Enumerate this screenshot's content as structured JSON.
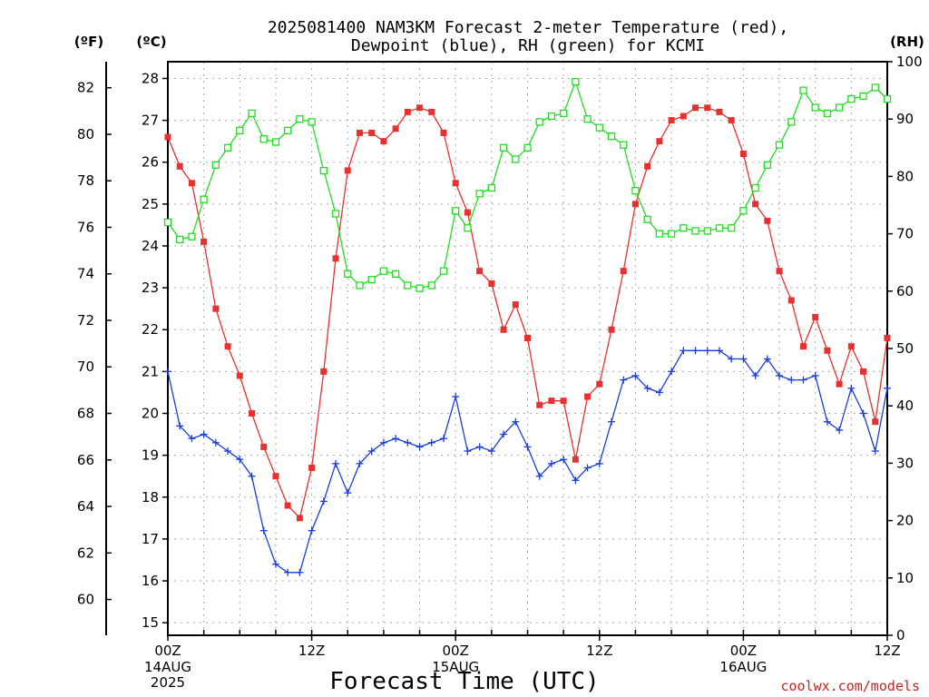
{
  "chart_data": {
    "type": "line",
    "title": "2025081400 NAM3KM Forecast 2-meter Temperature (red),",
    "subtitle": "Dewpoint (blue), RH (green) for KCMI",
    "xlabel": "Forecast Time (UTC)",
    "credit": "coolwx.com/models",
    "units": {
      "fahrenheit": "(ºF)",
      "celsius": "(ºC)",
      "rh": "(RH)"
    },
    "x_ticks": [
      {
        "hour": 0,
        "label": "00Z",
        "sub1": "14AUG",
        "sub2": "2025"
      },
      {
        "hour": 12,
        "label": "12Z",
        "sub1": "",
        "sub2": ""
      },
      {
        "hour": 24,
        "label": "00Z",
        "sub1": "15AUG",
        "sub2": ""
      },
      {
        "hour": 36,
        "label": "12Z",
        "sub1": "",
        "sub2": ""
      },
      {
        "hour": 48,
        "label": "00Z",
        "sub1": "16AUG",
        "sub2": ""
      },
      {
        "hour": 60,
        "label": "12Z",
        "sub1": "",
        "sub2": ""
      }
    ],
    "xlim": [
      0,
      60
    ],
    "celsius_ticks": [
      "15",
      "16",
      "17",
      "18",
      "19",
      "20",
      "21",
      "22",
      "23",
      "24",
      "25",
      "26",
      "27",
      "28"
    ],
    "celsius_lim": [
      14.7,
      28.4
    ],
    "fahrenheit_ticks": [
      "60",
      "62",
      "64",
      "66",
      "68",
      "70",
      "72",
      "74",
      "76",
      "78",
      "80",
      "82"
    ],
    "rh_ticks": [
      "0",
      "10",
      "20",
      "30",
      "40",
      "50",
      "60",
      "70",
      "80",
      "90",
      "100"
    ],
    "rh_lim": [
      0,
      100
    ],
    "grid": true,
    "colors": {
      "temperature": "#e83030",
      "dewpoint": "#1a3fd6",
      "rh": "#22dd22",
      "credit": "#cc2222"
    },
    "series": [
      {
        "name": "Temperature",
        "axis": "celsius",
        "marker": "filled-square",
        "x": [
          0,
          1,
          2,
          3,
          4,
          5,
          6,
          7,
          8,
          9,
          10,
          11,
          12,
          13,
          14,
          15,
          16,
          17,
          18,
          19,
          20,
          21,
          22,
          23,
          24,
          25,
          26,
          27,
          28,
          29,
          30,
          31,
          32,
          33,
          34,
          35,
          36,
          37,
          38,
          39,
          40,
          41,
          42,
          43,
          44,
          45,
          46,
          47,
          48,
          49,
          50,
          51,
          52,
          53,
          54,
          55,
          56,
          57,
          58,
          59,
          60
        ],
        "values": [
          26.6,
          25.9,
          25.5,
          24.1,
          22.5,
          21.6,
          20.9,
          20.0,
          19.2,
          18.5,
          17.8,
          17.5,
          18.7,
          21.0,
          23.7,
          25.8,
          26.7,
          26.7,
          26.5,
          26.8,
          27.2,
          27.3,
          27.2,
          26.7,
          25.5,
          24.8,
          23.4,
          23.1,
          22.0,
          22.6,
          21.8,
          20.2,
          20.3,
          20.3,
          18.9,
          20.4,
          20.7,
          22.0,
          23.4,
          25.0,
          25.9,
          26.5,
          27.0,
          27.1,
          27.3,
          27.3,
          27.2,
          27.0,
          26.2,
          25.0,
          24.6,
          23.4,
          22.7,
          21.6,
          22.3,
          21.5,
          20.7,
          21.6,
          21.0,
          19.8,
          21.8
        ]
      },
      {
        "name": "Dewpoint",
        "axis": "celsius",
        "marker": "plus",
        "x": [
          0,
          1,
          2,
          3,
          4,
          5,
          6,
          7,
          8,
          9,
          10,
          11,
          12,
          13,
          14,
          15,
          16,
          17,
          18,
          19,
          20,
          21,
          22,
          23,
          24,
          25,
          26,
          27,
          28,
          29,
          30,
          31,
          32,
          33,
          34,
          35,
          36,
          37,
          38,
          39,
          40,
          41,
          42,
          43,
          44,
          45,
          46,
          47,
          48,
          49,
          50,
          51,
          52,
          53,
          54,
          55,
          56,
          57,
          58,
          59,
          60
        ],
        "values": [
          21.0,
          19.7,
          19.4,
          19.5,
          19.3,
          19.1,
          18.9,
          18.5,
          17.2,
          16.4,
          16.2,
          16.2,
          17.2,
          17.9,
          18.8,
          18.1,
          18.8,
          19.1,
          19.3,
          19.4,
          19.3,
          19.2,
          19.3,
          19.4,
          20.4,
          19.1,
          19.2,
          19.1,
          19.5,
          19.8,
          19.2,
          18.5,
          18.8,
          18.9,
          18.4,
          18.7,
          18.8,
          19.8,
          20.8,
          20.9,
          20.6,
          20.5,
          21.0,
          21.5,
          21.5,
          21.5,
          21.5,
          21.3,
          21.3,
          20.9,
          21.3,
          20.9,
          20.8,
          20.8,
          20.9,
          19.8,
          19.6,
          20.6,
          20.0,
          19.1,
          20.6
        ]
      },
      {
        "name": "RH",
        "axis": "rh",
        "marker": "open-square",
        "x": [
          0,
          1,
          2,
          3,
          4,
          5,
          6,
          7,
          8,
          9,
          10,
          11,
          12,
          13,
          14,
          15,
          16,
          17,
          18,
          19,
          20,
          21,
          22,
          23,
          24,
          25,
          26,
          27,
          28,
          29,
          30,
          31,
          32,
          33,
          34,
          35,
          36,
          37,
          38,
          39,
          40,
          41,
          42,
          43,
          44,
          45,
          46,
          47,
          48,
          49,
          50,
          51,
          52,
          53,
          54,
          55,
          56,
          57,
          58,
          59,
          60
        ],
        "values": [
          72,
          69,
          69.5,
          76,
          82,
          85,
          88,
          91,
          86.5,
          86,
          88,
          90,
          89.5,
          81,
          73.5,
          63,
          61,
          62,
          63.5,
          63,
          61,
          60.5,
          61,
          63.5,
          74,
          71,
          77,
          78,
          85,
          83,
          85,
          89.5,
          90.5,
          91,
          96.5,
          90,
          88.5,
          87,
          85.5,
          77.5,
          72.5,
          70,
          70,
          71,
          70.5,
          70.5,
          71,
          71,
          74,
          78,
          82,
          85.5,
          89.5,
          95,
          92,
          91,
          92,
          93.5,
          94,
          95.5,
          93.5
        ]
      }
    ]
  }
}
